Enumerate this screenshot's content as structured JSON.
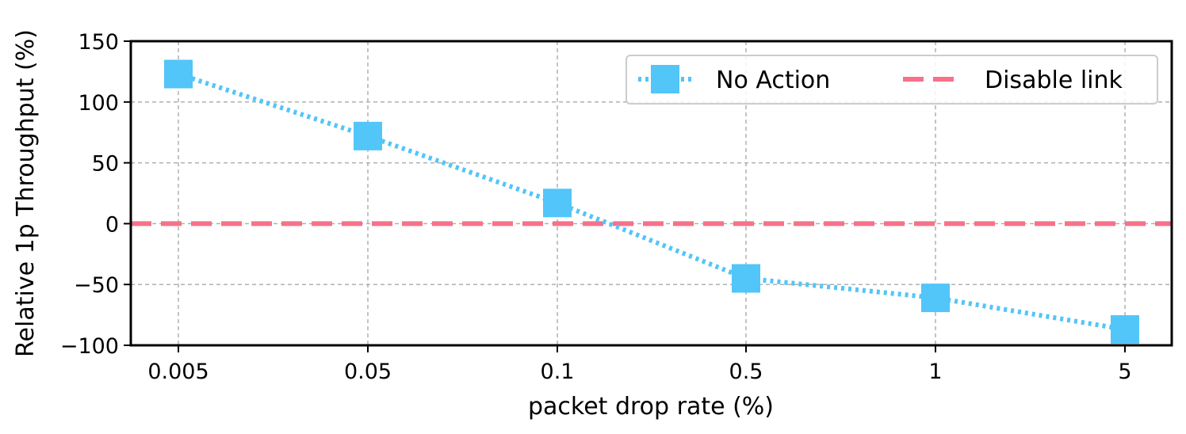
{
  "chart_data": {
    "type": "line",
    "title": "",
    "xlabel": "packet drop rate (%)",
    "ylabel": "Relative 1p Throughput (%)",
    "categories": [
      "0.005",
      "0.05",
      "0.1",
      "0.5",
      "1",
      "5"
    ],
    "ylim": [
      -100,
      150
    ],
    "yticks": [
      150,
      100,
      50,
      0,
      -50,
      -100
    ],
    "ytick_labels": [
      "150",
      "100",
      "50",
      "0",
      "−50",
      "−100"
    ],
    "grid": true,
    "legend_position": "top-right",
    "series": [
      {
        "name": "No Action",
        "values": [
          123,
          72,
          17,
          -45,
          -61,
          -87
        ],
        "color": "#52c5f9",
        "line_style": "dotted",
        "marker": "square"
      },
      {
        "name": "Disable link",
        "values": [
          0,
          0,
          0,
          0,
          0,
          0
        ],
        "color": "#f6718a",
        "line_style": "dashed",
        "marker": "none"
      }
    ]
  }
}
